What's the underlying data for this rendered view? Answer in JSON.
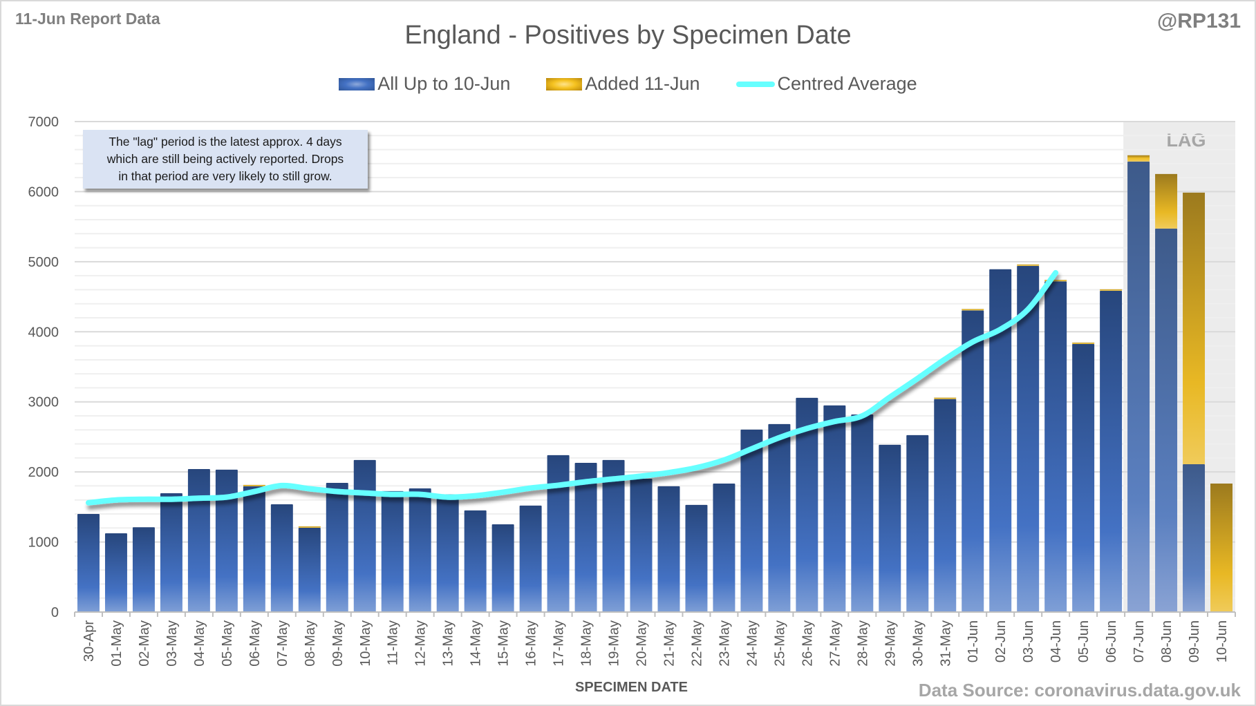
{
  "header": {
    "report_label": "11-Jun Report Data",
    "handle": "@RP131"
  },
  "footer": {
    "source": "Data Source: coronavirus.data.gov.uk"
  },
  "annotation": {
    "text": "The \"lag\" period is the latest approx. 4 days\nwhich are still being actively reported.  Drops\nin that period are very likely to still grow."
  },
  "colors": {
    "series_blue": "#4472c4",
    "series_blue_dark": "#2a4a82",
    "series_gold": "#f0c030",
    "series_gold_dark": "#9c7a1e",
    "average_line": "#66ffff",
    "lag_band": "#ececec",
    "gridline_major": "#d9d9d9",
    "gridline_minor": "#efefef"
  },
  "chart_data": {
    "type": "bar",
    "stacked": true,
    "title": "England - Positives by Specimen Date",
    "xlabel": "SPECIMEN DATE",
    "ylabel": "",
    "ylim": [
      0,
      7000
    ],
    "yticks": [
      0,
      1000,
      2000,
      3000,
      4000,
      5000,
      6000,
      7000
    ],
    "minor_grid_step": 200,
    "grid": true,
    "legend_position": "top-center",
    "categories": [
      "30-Apr",
      "01-May",
      "02-May",
      "03-May",
      "04-May",
      "05-May",
      "06-May",
      "07-May",
      "08-May",
      "09-May",
      "10-May",
      "11-May",
      "12-May",
      "13-May",
      "14-May",
      "15-May",
      "16-May",
      "17-May",
      "18-May",
      "19-May",
      "20-May",
      "21-May",
      "22-May",
      "23-May",
      "24-May",
      "25-May",
      "26-May",
      "27-May",
      "28-May",
      "29-May",
      "30-May",
      "31-May",
      "01-Jun",
      "02-Jun",
      "03-Jun",
      "04-Jun",
      "05-Jun",
      "06-Jun",
      "07-Jun",
      "08-Jun",
      "09-Jun",
      "10-Jun"
    ],
    "series": [
      {
        "name": "All Up to 10-Jun",
        "kind": "bar",
        "values": [
          1400,
          1124,
          1210,
          1696,
          2041,
          2032,
          1795,
          1538,
          1203,
          1844,
          2170,
          1726,
          1765,
          1680,
          1450,
          1252,
          1519,
          2239,
          2130,
          2170,
          1903,
          1795,
          1529,
          1834,
          2604,
          2683,
          3057,
          2949,
          2820,
          2387,
          2525,
          3040,
          4305,
          4892,
          4941,
          4720,
          3826,
          4586,
          6430,
          5473,
          2110,
          0
        ]
      },
      {
        "name": "Added 11-Jun",
        "kind": "bar",
        "values": [
          0,
          0,
          0,
          0,
          0,
          0,
          10,
          0,
          10,
          0,
          0,
          0,
          0,
          0,
          0,
          0,
          0,
          0,
          0,
          0,
          0,
          0,
          0,
          0,
          0,
          0,
          0,
          0,
          0,
          0,
          0,
          7,
          15,
          0,
          10,
          14,
          10,
          10,
          89,
          779,
          3876,
          1834
        ]
      },
      {
        "name": "Centred Average",
        "kind": "line",
        "values": [
          1560,
          1600,
          1610,
          1610,
          1625,
          1640,
          1720,
          1805,
          1760,
          1720,
          1700,
          1680,
          1680,
          1640,
          1660,
          1710,
          1770,
          1810,
          1860,
          1900,
          1940,
          1990,
          2060,
          2170,
          2330,
          2490,
          2620,
          2720,
          2800,
          3067,
          3333,
          3610,
          3856,
          4034,
          4320,
          4842,
          null,
          null,
          null,
          null,
          null,
          null
        ]
      }
    ],
    "annotations": [
      {
        "label": "LAG",
        "span": [
          "07-Jun",
          "10-Jun"
        ]
      }
    ]
  }
}
